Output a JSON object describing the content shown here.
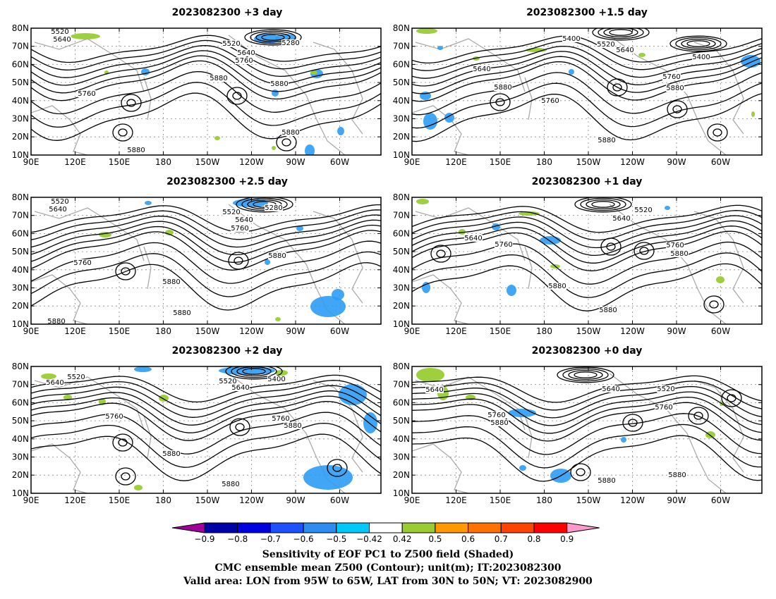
{
  "panels": [
    {
      "title": "2023082300 +3 day",
      "labels": [
        [
          "5520",
          85,
          48
        ],
        [
          "5640",
          88,
          59
        ],
        [
          "5280",
          412,
          64
        ],
        [
          "5520",
          328,
          65
        ],
        [
          "5640",
          349,
          78
        ],
        [
          "5760",
          346,
          89
        ],
        [
          "5880",
          310,
          114
        ],
        [
          "5760",
          123,
          136
        ],
        [
          "5880",
          396,
          122
        ],
        [
          "5880",
          412,
          191
        ],
        [
          "5880",
          193,
          216
        ]
      ],
      "lows": [
        [
          336,
          136
        ],
        [
          186,
          146
        ],
        [
          174,
          188
        ],
        [
          406,
          202
        ]
      ],
      "jet": [
        [
          387,
          53
        ]
      ],
      "band": 14,
      "blue": [
        [
          360,
          48,
          36,
          14
        ],
        [
          390,
          48,
          30,
          12
        ],
        [
          200,
          97,
          12,
          10
        ],
        [
          440,
          98,
          18,
          13
        ],
        [
          385,
          127,
          10,
          10
        ],
        [
          478,
          180,
          10,
          12
        ],
        [
          432,
          205,
          14,
          18
        ]
      ],
      "green": [
        [
          100,
          47,
          42,
          9
        ],
        [
          148,
          100,
          6,
          6
        ],
        [
          304,
          193,
          8,
          6
        ],
        [
          385,
          207,
          6,
          6
        ],
        [
          440,
          100,
          10,
          6
        ]
      ]
    },
    {
      "title": "2023082300 +1.5 day",
      "labels": [
        [
          "5400",
          810,
          58
        ],
        [
          "5520",
          859,
          66
        ],
        [
          "5640",
          886,
          74
        ],
        [
          "5400",
          994,
          84
        ],
        [
          "5640",
          683,
          101
        ],
        [
          "5760",
          952,
          112
        ],
        [
          "5880",
          713,
          127
        ],
        [
          "5880",
          957,
          128
        ],
        [
          "5760",
          780,
          146
        ],
        [
          "5880",
          860,
          202
        ]
      ],
      "lows": [
        [
          709,
          145
        ],
        [
          960,
          155
        ],
        [
          875,
          124
        ],
        [
          1017,
          188
        ]
      ],
      "jet": [
        [
          880,
          46
        ],
        [
          990,
          62
        ]
      ],
      "band": 12,
      "blue": [
        [
          595,
          130,
          16,
          12
        ],
        [
          600,
          160,
          20,
          24
        ],
        [
          630,
          160,
          14,
          14
        ],
        [
          1050,
          78,
          28,
          18
        ],
        [
          806,
          98,
          8,
          8
        ],
        [
          620,
          65,
          8,
          6
        ]
      ],
      "green": [
        [
          590,
          40,
          30,
          8
        ],
        [
          670,
          80,
          10,
          6
        ],
        [
          745,
          68,
          30,
          6
        ],
        [
          905,
          75,
          10,
          6
        ],
        [
          1065,
          158,
          5,
          8
        ]
      ]
    },
    {
      "title": "2023082300 +2.5 day",
      "labels": [
        [
          "5520",
          85,
          289
        ],
        [
          "5640",
          82,
          300
        ],
        [
          "5280",
          388,
          298
        ],
        [
          "5520",
          328,
          304
        ],
        [
          "5640",
          346,
          315
        ],
        [
          "5760",
          340,
          327
        ],
        [
          "5880",
          393,
          366
        ],
        [
          "5760",
          117,
          376
        ],
        [
          "5880",
          243,
          403
        ],
        [
          "5880",
          258,
          447
        ],
        [
          "5880",
          80,
          459
        ]
      ],
      "lows": [
        [
          338,
          370
        ],
        [
          178,
          385
        ]
      ],
      "jet": [
        [
          375,
          290
        ]
      ],
      "band": 14,
      "blue": [
        [
          330,
          282,
          50,
          12
        ],
        [
          420,
          320,
          10,
          8
        ],
        [
          375,
          368,
          8,
          8
        ],
        [
          440,
          420,
          50,
          30
        ],
        [
          470,
          410,
          18,
          16
        ],
        [
          205,
          285,
          10,
          6
        ]
      ],
      "green": [
        [
          140,
          329,
          18,
          8
        ],
        [
          234,
          326,
          12,
          8
        ],
        [
          390,
          450,
          8,
          6
        ]
      ]
    },
    {
      "title": "2023082300 +1 day",
      "labels": [
        [
          "5520",
          912,
          301
        ],
        [
          "5640",
          881,
          313
        ],
        [
          "5640",
          671,
          341
        ],
        [
          "5760",
          714,
          350
        ],
        [
          "5760",
          957,
          351
        ],
        [
          "5880",
          963,
          363
        ],
        [
          "5880",
          790,
          409
        ],
        [
          "5880",
          862,
          443
        ]
      ],
      "lows": [
        [
          625,
          360
        ],
        [
          866,
          350
        ],
        [
          913,
          356
        ],
        [
          1012,
          432
        ]
      ],
      "jet": [
        [
          855,
          290
        ]
      ],
      "band": 12,
      "blue": [
        [
          697,
          317,
          12,
          10
        ],
        [
          765,
          335,
          30,
          12
        ],
        [
          598,
          400,
          12,
          16
        ],
        [
          718,
          404,
          14,
          16
        ],
        [
          942,
          292,
          8,
          6
        ]
      ],
      "green": [
        [
          590,
          282,
          18,
          8
        ],
        [
          650,
          325,
          10,
          8
        ],
        [
          735,
          300,
          30,
          6
        ],
        [
          780,
          375,
          14,
          6
        ],
        [
          1015,
          392,
          12,
          10
        ]
      ]
    },
    {
      "title": "2023082300 +2 day",
      "labels": [
        [
          "5520",
          108,
          538
        ],
        [
          "5640",
          78,
          546
        ],
        [
          "5400",
          392,
          541
        ],
        [
          "5520",
          323,
          544
        ],
        [
          "5640",
          341,
          553
        ],
        [
          "5760",
          162,
          594
        ],
        [
          "5760",
          398,
          597
        ],
        [
          "5880",
          415,
          607
        ],
        [
          "5880",
          243,
          647
        ],
        [
          "5880",
          327,
          690
        ]
      ],
      "lows": [
        [
          340,
          606
        ],
        [
          174,
          628
        ],
        [
          478,
          664
        ],
        [
          178,
          676
        ]
      ],
      "jet": [
        [
          360,
          527
        ]
      ],
      "band": 14,
      "blue": [
        [
          310,
          520,
          80,
          12
        ],
        [
          190,
          520,
          25,
          8
        ],
        [
          480,
          545,
          40,
          30
        ],
        [
          515,
          585,
          20,
          30
        ],
        [
          430,
          660,
          70,
          35
        ],
        [
          570,
          560,
          10,
          20
        ]
      ],
      "green": [
        [
          58,
          530,
          22,
          8
        ],
        [
          90,
          560,
          12,
          8
        ],
        [
          140,
          565,
          10,
          10
        ],
        [
          225,
          560,
          14,
          10
        ],
        [
          190,
          688,
          12,
          8
        ],
        [
          390,
          525,
          18,
          8
        ]
      ]
    },
    {
      "title": "2023082300 +0 day",
      "labels": [
        [
          "5640",
          616,
          556
        ],
        [
          "5640",
          866,
          555
        ],
        [
          "5520",
          944,
          555
        ],
        [
          "5760",
          941,
          581
        ],
        [
          "5760",
          704,
          592
        ],
        [
          "5880",
          708,
          603
        ],
        [
          "5880",
          860,
          685
        ],
        [
          "5880",
          960,
          677
        ]
      ],
      "lows": [
        [
          823,
          670
        ],
        [
          897,
          600
        ],
        [
          1037,
          565
        ],
        [
          990,
          590
        ]
      ],
      "jet": [
        [
          830,
          532
        ]
      ],
      "band": 12,
      "blue": [
        [
          720,
          580,
          40,
          12
        ],
        [
          880,
          620,
          8,
          8
        ],
        [
          780,
          665,
          30,
          20
        ],
        [
          736,
          660,
          10,
          8
        ]
      ],
      "green": [
        [
          590,
          522,
          40,
          20
        ],
        [
          620,
          548,
          16,
          20
        ],
        [
          660,
          560,
          14,
          8
        ],
        [
          1000,
          612,
          14,
          10
        ],
        [
          1020,
          570,
          6,
          6
        ]
      ]
    }
  ],
  "lat_labels": [
    "80N",
    "70N",
    "60N",
    "50N",
    "40N",
    "30N",
    "20N",
    "10N"
  ],
  "lon_labels": [
    "90E",
    "120E",
    "150E",
    "180",
    "150W",
    "120W",
    "90W",
    "60W"
  ],
  "colorbar": {
    "ticks": [
      "−0.9",
      "−0.8",
      "−0.7",
      "−0.6",
      "−0.5",
      "−0.42",
      "0.42",
      "0.5",
      "0.6",
      "0.7",
      "0.8",
      "0.9"
    ],
    "colors": [
      "#a0009a",
      "#0000a8",
      "#0000e0",
      "#1f50ff",
      "#2d8cf0",
      "#00c8f8",
      "#ffffff",
      "#99cc33",
      "#ff9900",
      "#ff7200",
      "#ff4400",
      "#ff0000",
      "#ff99cc"
    ]
  },
  "caption": {
    "line1": "Sensitivity of EOF PC1 to Z500 field (Shaded)",
    "line2": "CMC ensemble mean Z500 (Contour); unit(m); IT:2023082300",
    "line3": "Valid area: LON from 95W to 65W, LAT from 30N to 50N; VT: 2023082900"
  },
  "colors": {
    "contour": "#000000",
    "coast": "#aaaaaa",
    "grid": "#888888"
  }
}
